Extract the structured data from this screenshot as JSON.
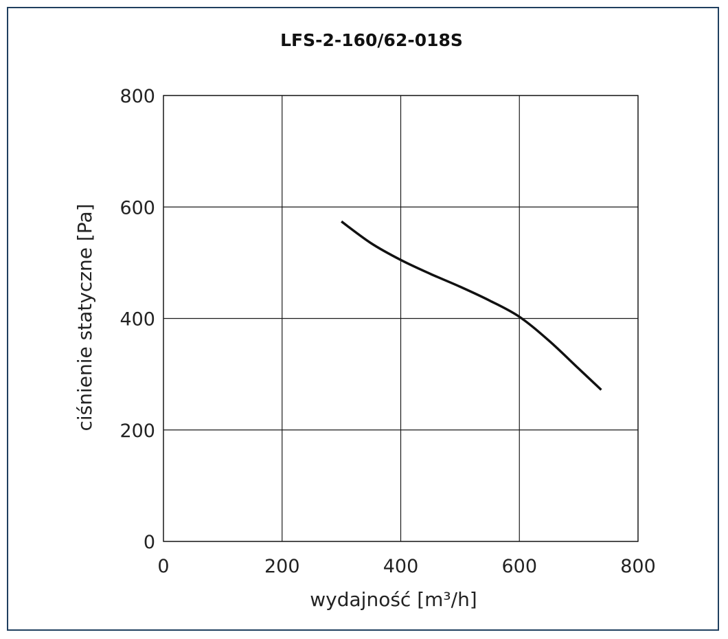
{
  "chart_data": {
    "type": "line",
    "title": "LFS-2-160/62-018S",
    "xlabel": "wydajność [m³/h]",
    "ylabel": "ciśnienie statyczne [Pa]",
    "xlim": [
      0,
      800
    ],
    "ylim": [
      0,
      800
    ],
    "xticks": [
      "0",
      "200",
      "400",
      "600",
      "800"
    ],
    "yticks": [
      "0",
      "200",
      "400",
      "600",
      "800"
    ],
    "grid": true,
    "series": [
      {
        "name": "",
        "color": "#111111",
        "x": [
          300,
          350,
          400,
          450,
          500,
          550,
          600,
          650,
          700,
          738
        ],
        "y": [
          574,
          535,
          505,
          480,
          457,
          432,
          403,
          360,
          310,
          272
        ]
      }
    ]
  }
}
